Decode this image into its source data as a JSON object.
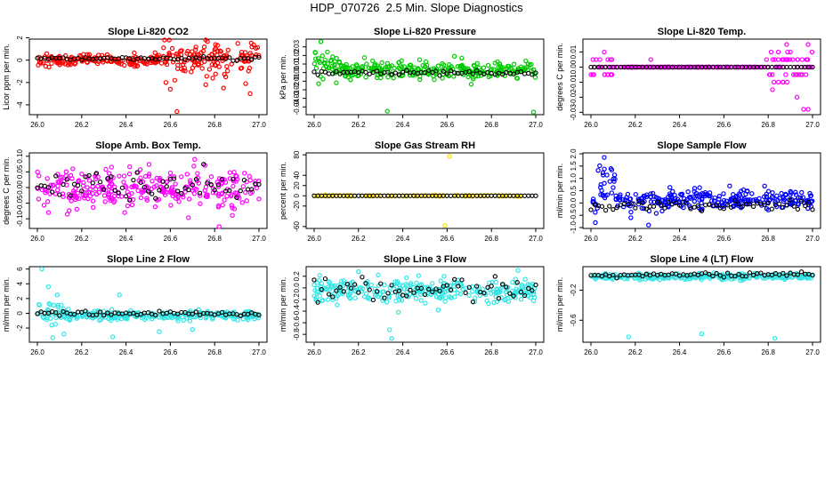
{
  "page": {
    "title": "HDP_070726  2.5 Min. Slope Diagnostics"
  },
  "colors": {
    "frame": "#000000",
    "background": "#ffffff",
    "reference_points": "#000000"
  },
  "chart_data": [
    {
      "type": "scatter",
      "title": "Slope Li-820 CO2",
      "ylabel": "Licor ppm per min.",
      "xlabel": "",
      "color": "#ff0000",
      "xlim": [
        26.0,
        27.0
      ],
      "ylim": [
        -4.8,
        1.8
      ],
      "yticks": [
        2,
        0,
        -2,
        -4
      ],
      "yticklabels": [
        "2",
        "0",
        "-2",
        "-4"
      ],
      "xticks": [
        26.0,
        26.2,
        26.4,
        26.6,
        26.8,
        27.0
      ],
      "xticklabels": [
        "26.0",
        "26.2",
        "26.4",
        "26.6",
        "26.8",
        "27.0"
      ],
      "black_base": 0.15,
      "black_noise": 0.15,
      "n_points": 300,
      "color_segments": [
        {
          "x0": 26.0,
          "x1": 26.55,
          "base": 0.0,
          "noise": 0.45
        },
        {
          "x0": 26.55,
          "x1": 27.0,
          "base": 0.1,
          "noise": 1.2
        }
      ],
      "outliers": [
        [
          26.58,
          -2.0
        ],
        [
          26.6,
          -2.6
        ],
        [
          26.62,
          -1.8
        ],
        [
          26.63,
          -4.6
        ],
        [
          26.76,
          -2.2
        ],
        [
          26.84,
          -2.5
        ],
        [
          26.94,
          -2.1
        ],
        [
          26.96,
          -3.0
        ],
        [
          26.85,
          -1.5
        ]
      ]
    },
    {
      "type": "scatter",
      "title": "Slope Li-820 Pressure",
      "ylabel": "kPa per min.",
      "xlabel": "",
      "color": "#00cc00",
      "xlim": [
        26.0,
        27.0
      ],
      "ylim": [
        -0.048,
        0.038
      ],
      "yticks": [
        0.03,
        0.02,
        0.01,
        0.0,
        -0.01,
        -0.02,
        -0.03,
        -0.04
      ],
      "yticklabels": [
        "0.03",
        "0.02",
        "0.01",
        "0.00",
        "-0.01",
        "-0.02",
        "-0.03",
        "-0.04"
      ],
      "xticks": [
        26.0,
        26.2,
        26.4,
        26.6,
        26.8,
        27.0
      ],
      "xticklabels": [
        "26.0",
        "26.2",
        "26.4",
        "26.6",
        "26.8",
        "27.0"
      ],
      "black_base": 0.0,
      "black_noise": 0.003,
      "n_points": 300,
      "color_segments": [
        {
          "x0": 26.0,
          "x1": 26.12,
          "base": 0.009,
          "noise": 0.013
        },
        {
          "x0": 26.12,
          "x1": 27.0,
          "base": 0.003,
          "noise": 0.009
        }
      ],
      "outliers": [
        [
          26.03,
          0.036
        ],
        [
          26.06,
          0.024
        ],
        [
          26.02,
          -0.013
        ],
        [
          26.33,
          -0.045
        ],
        [
          26.99,
          -0.046
        ],
        [
          26.1,
          -0.012
        ]
      ]
    },
    {
      "type": "scatter",
      "title": "Slope Li-820 Temp.",
      "ylabel": "degrees C per min.",
      "xlabel": "",
      "color": "#ff00ff",
      "xlim": [
        26.0,
        27.0
      ],
      "ylim": [
        -0.031,
        0.018
      ],
      "yticks": [
        0.01,
        0.0,
        -0.01,
        -0.02,
        -0.03
      ],
      "yticklabels": [
        "0.01",
        "0.00",
        "-0.01",
        "-0.02",
        "-0.03"
      ],
      "xticks": [
        26.0,
        26.2,
        26.4,
        26.6,
        26.8,
        27.0
      ],
      "xticklabels": [
        "26.0",
        "26.2",
        "26.4",
        "26.6",
        "26.8",
        "27.0"
      ],
      "black_base": 0.0,
      "black_noise": 0.0,
      "n_points": 260,
      "quantize": 0.005,
      "color_segments": [
        {
          "x0": 26.0,
          "x1": 26.1,
          "base": 0.0,
          "noise": 0.007
        },
        {
          "x0": 26.1,
          "x1": 26.78,
          "base": 0.0,
          "noise": 0.0
        },
        {
          "x0": 26.78,
          "x1": 27.0,
          "base": 0.0,
          "noise": 0.011
        }
      ],
      "outliers": [
        [
          26.27,
          0.005
        ],
        [
          26.98,
          0.015
        ],
        [
          26.96,
          -0.028
        ],
        [
          26.98,
          -0.028
        ],
        [
          26.9,
          0.01
        ],
        [
          26.93,
          -0.02
        ]
      ]
    },
    {
      "type": "scatter",
      "title": "Slope Amb. Box Temp.",
      "ylabel": "degrees C per min.",
      "xlabel": "",
      "color": "#ff00ff",
      "xlim": [
        26.0,
        27.0
      ],
      "ylim": [
        -0.128,
        0.108
      ],
      "yticks": [
        0.1,
        0.05,
        0.0,
        -0.05,
        -0.1
      ],
      "yticklabels": [
        "0.10",
        "0.05",
        "0.00",
        "-0.05",
        "-0.10"
      ],
      "xticks": [
        26.0,
        26.2,
        26.4,
        26.6,
        26.8,
        27.0
      ],
      "xticklabels": [
        "26.0",
        "26.2",
        "26.4",
        "26.6",
        "26.8",
        "27.0"
      ],
      "black_base": 0.0,
      "black_noise": 0.05,
      "n_points": 300,
      "color_segments": [
        {
          "x0": 26.0,
          "x1": 27.0,
          "base": 0.0,
          "noise": 0.055
        }
      ],
      "outliers": [
        [
          26.05,
          -0.08
        ],
        [
          26.82,
          -0.125
        ],
        [
          26.71,
          0.09
        ]
      ]
    },
    {
      "type": "scatter",
      "title": "Slope Gas Stream RH",
      "ylabel": "percent per min.",
      "xlabel": "",
      "color": "#ffdd00",
      "xlim": [
        26.0,
        27.0
      ],
      "ylim": [
        -62,
        82
      ],
      "yticks": [
        80,
        40,
        20,
        0,
        -20,
        -60
      ],
      "yticklabels": [
        "80",
        "40",
        "20",
        "0",
        "-20",
        "-60"
      ],
      "xticks": [
        26.0,
        26.2,
        26.4,
        26.6,
        26.8,
        27.0
      ],
      "xticklabels": [
        "26.0",
        "26.2",
        "26.4",
        "26.6",
        "26.8",
        "27.0"
      ],
      "black_base": 0.0,
      "black_noise": 0.0,
      "n_points": 90,
      "color_segments": [
        {
          "x0": 26.0,
          "x1": 27.0,
          "base": 0.0,
          "noise": 1.0
        }
      ],
      "outliers": [
        [
          26.61,
          77
        ],
        [
          26.59,
          -58
        ],
        [
          26.02,
          0
        ],
        [
          26.05,
          2
        ]
      ]
    },
    {
      "type": "scatter",
      "title": "Slope Sample Flow",
      "ylabel": "ml/min per min.",
      "xlabel": "",
      "color": "#0000ff",
      "xlim": [
        26.0,
        27.0
      ],
      "ylim": [
        -1.0,
        2.0
      ],
      "yticks": [
        2.0,
        1.5,
        1.0,
        0.5,
        0.0,
        -0.5,
        -1.0
      ],
      "yticklabels": [
        "2.0",
        "1.5",
        "1.0",
        "0.5",
        "0.0",
        "-0.5",
        "-1.0"
      ],
      "xticks": [
        26.0,
        26.2,
        26.4,
        26.6,
        26.8,
        27.0
      ],
      "xticklabels": [
        "26.0",
        "26.2",
        "26.4",
        "26.6",
        "26.8",
        "27.0"
      ],
      "black_base": -0.12,
      "black_noise": 0.22,
      "n_points": 300,
      "color_segments": [
        {
          "x0": 26.0,
          "x1": 26.03,
          "base": 0.0,
          "noise": 0.3
        },
        {
          "x0": 26.03,
          "x1": 26.11,
          "base": 0.95,
          "noise": 0.6
        },
        {
          "x0": 26.11,
          "x1": 27.0,
          "base": 0.12,
          "noise": 0.35
        }
      ],
      "outliers": [
        [
          26.06,
          1.85
        ],
        [
          26.09,
          1.4
        ],
        [
          26.26,
          -0.9
        ],
        [
          26.18,
          -0.6
        ],
        [
          26.02,
          -0.8
        ]
      ]
    },
    {
      "type": "scatter",
      "title": "Slope Line 2 Flow",
      "ylabel": "ml/min per min.",
      "xlabel": "",
      "color": "#33e6e6",
      "xlim": [
        26.0,
        27.0
      ],
      "ylim": [
        -3.8,
        6.2
      ],
      "yticks": [
        6,
        4,
        2,
        0,
        -2
      ],
      "yticklabels": [
        "6",
        "4",
        "2",
        "0",
        "-2"
      ],
      "xticks": [
        26.0,
        26.2,
        26.4,
        26.6,
        26.8,
        27.0
      ],
      "xticklabels": [
        "26.0",
        "26.2",
        "26.4",
        "26.6",
        "26.8",
        "27.0"
      ],
      "black_base": 0.0,
      "black_noise": 0.35,
      "n_points": 300,
      "color_segments": [
        {
          "x0": 26.0,
          "x1": 26.12,
          "base": 0.0,
          "noise": 1.6
        },
        {
          "x0": 26.12,
          "x1": 27.0,
          "base": -0.3,
          "noise": 0.55
        }
      ],
      "outliers": [
        [
          26.02,
          6.0
        ],
        [
          26.05,
          3.6
        ],
        [
          26.09,
          2.5
        ],
        [
          26.12,
          -2.8
        ],
        [
          26.37,
          2.5
        ],
        [
          26.34,
          -3.2
        ],
        [
          26.55,
          -2.5
        ],
        [
          26.7,
          -2.2
        ],
        [
          26.07,
          -3.3
        ]
      ]
    },
    {
      "type": "scatter",
      "title": "Slope Line 3 Flow",
      "ylabel": "ml/min per min.",
      "xlabel": "",
      "color": "#33e6e6",
      "xlim": [
        26.0,
        27.0
      ],
      "ylim": [
        -0.92,
        0.35
      ],
      "yticks": [
        0.2,
        0.0,
        -0.2,
        -0.4,
        -0.6,
        -0.8
      ],
      "yticklabels": [
        "0.2",
        "0.0",
        "-0.2",
        "-0.4",
        "-0.6",
        "-0.8"
      ],
      "xticks": [
        26.0,
        26.2,
        26.4,
        26.6,
        26.8,
        27.0
      ],
      "xticklabels": [
        "26.0",
        "26.2",
        "26.4",
        "26.6",
        "26.8",
        "27.0"
      ],
      "black_base": -0.02,
      "black_noise": 0.2,
      "n_points": 300,
      "color_segments": [
        {
          "x0": 26.0,
          "x1": 27.0,
          "base": -0.05,
          "noise": 0.18
        }
      ],
      "outliers": [
        [
          26.34,
          -0.72
        ],
        [
          26.35,
          -0.87
        ],
        [
          26.38,
          -0.42
        ],
        [
          26.2,
          0.28
        ],
        [
          26.92,
          0.3
        ],
        [
          26.56,
          -0.38
        ]
      ]
    },
    {
      "type": "scatter",
      "title": "Slope Line 4 (LT) Flow",
      "ylabel": "ml/min per min.",
      "xlabel": "",
      "color": "#33e6e6",
      "xlim": [
        26.0,
        27.0
      ],
      "ylim": [
        -0.88,
        0.1
      ],
      "yticks": [
        -0.2,
        -0.6
      ],
      "yticklabels": [
        "-0.2",
        "-0.6"
      ],
      "xticks": [
        26.0,
        26.2,
        26.4,
        26.6,
        26.8,
        27.0
      ],
      "xticklabels": [
        "26.0",
        "26.2",
        "26.4",
        "26.6",
        "26.8",
        "27.0"
      ],
      "black_base": 0.0,
      "black_noise": 0.03,
      "n_points": 300,
      "color_segments": [
        {
          "x0": 26.0,
          "x1": 27.0,
          "base": -0.02,
          "noise": 0.035
        }
      ],
      "outliers": [
        [
          26.17,
          -0.82
        ],
        [
          26.5,
          -0.78
        ],
        [
          26.83,
          -0.84
        ]
      ]
    }
  ]
}
